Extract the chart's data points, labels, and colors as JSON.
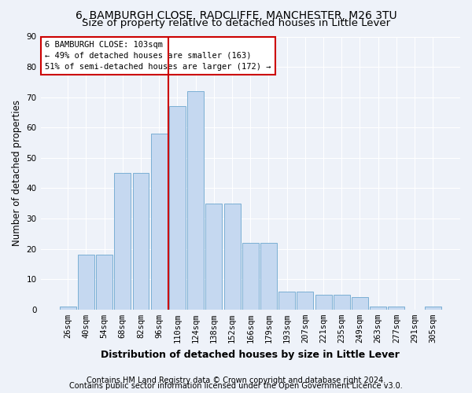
{
  "title1": "6, BAMBURGH CLOSE, RADCLIFFE, MANCHESTER, M26 3TU",
  "title2": "Size of property relative to detached houses in Little Lever",
  "xlabel": "Distribution of detached houses by size in Little Lever",
  "ylabel": "Number of detached properties",
  "bar_labels": [
    "26sqm",
    "40sqm",
    "54sqm",
    "68sqm",
    "82sqm",
    "96sqm",
    "110sqm",
    "124sqm",
    "138sqm",
    "152sqm",
    "166sqm",
    "179sqm",
    "193sqm",
    "207sqm",
    "221sqm",
    "235sqm",
    "249sqm",
    "263sqm",
    "277sqm",
    "291sqm",
    "305sqm"
  ],
  "bar_values": [
    1,
    18,
    18,
    45,
    45,
    58,
    67,
    72,
    35,
    35,
    22,
    22,
    6,
    6,
    5,
    5,
    4,
    1,
    1,
    0,
    1
  ],
  "bar_color": "#c5d8f0",
  "bar_edge_color": "#7bafd4",
  "vline_x_index": 6,
  "vline_color": "#cc0000",
  "annotation_text": "6 BAMBURGH CLOSE: 103sqm\n← 49% of detached houses are smaller (163)\n51% of semi-detached houses are larger (172) →",
  "annotation_box_color": "#ffffff",
  "annotation_box_edge": "#cc0000",
  "ylim": [
    0,
    90
  ],
  "yticks": [
    0,
    10,
    20,
    30,
    40,
    50,
    60,
    70,
    80,
    90
  ],
  "footer1": "Contains HM Land Registry data © Crown copyright and database right 2024.",
  "footer2": "Contains public sector information licensed under the Open Government Licence v3.0.",
  "bg_color": "#eef2f9",
  "grid_color": "#ffffff",
  "title1_fontsize": 10,
  "title2_fontsize": 9.5,
  "xlabel_fontsize": 9,
  "ylabel_fontsize": 8.5,
  "tick_fontsize": 7.5,
  "annotation_fontsize": 7.5,
  "footer_fontsize": 7
}
